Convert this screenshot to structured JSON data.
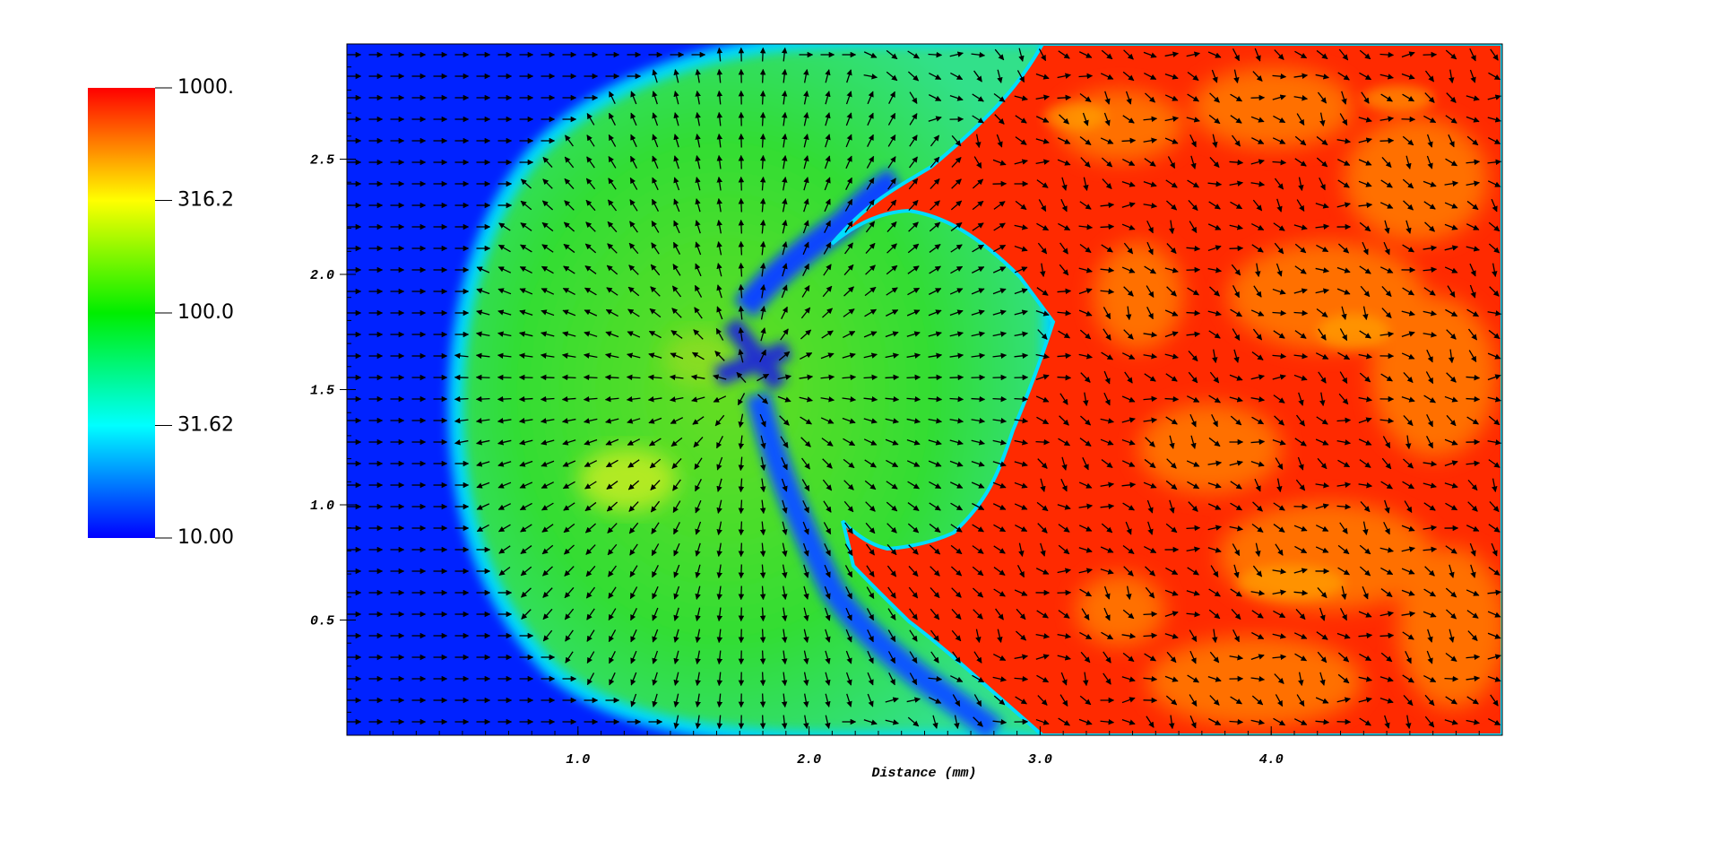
{
  "chart_data": {
    "type": "heatmap",
    "xlabel": "Distance (mm)",
    "xlim": [
      0,
      5
    ],
    "xticks": [
      {
        "value": 1,
        "label": "1.0"
      },
      {
        "value": 2,
        "label": "2.0"
      },
      {
        "value": 3,
        "label": "3.0"
      },
      {
        "value": 4,
        "label": "4.0"
      }
    ],
    "ylim": [
      0,
      3
    ],
    "yticks": [
      0.5,
      {
        "value": 1,
        "label": "1.0"
      },
      1.5,
      {
        "value": 2,
        "label": "2.0"
      },
      2.5
    ],
    "colorbar": {
      "log": true,
      "lim": [
        10,
        1000
      ],
      "ticks": [
        {
          "value": 10,
          "label": "10.00"
        },
        31.62,
        {
          "value": 100,
          "label": "100.0"
        },
        316.2,
        {
          "value": 1000,
          "label": "1000."
        }
      ]
    }
  }
}
